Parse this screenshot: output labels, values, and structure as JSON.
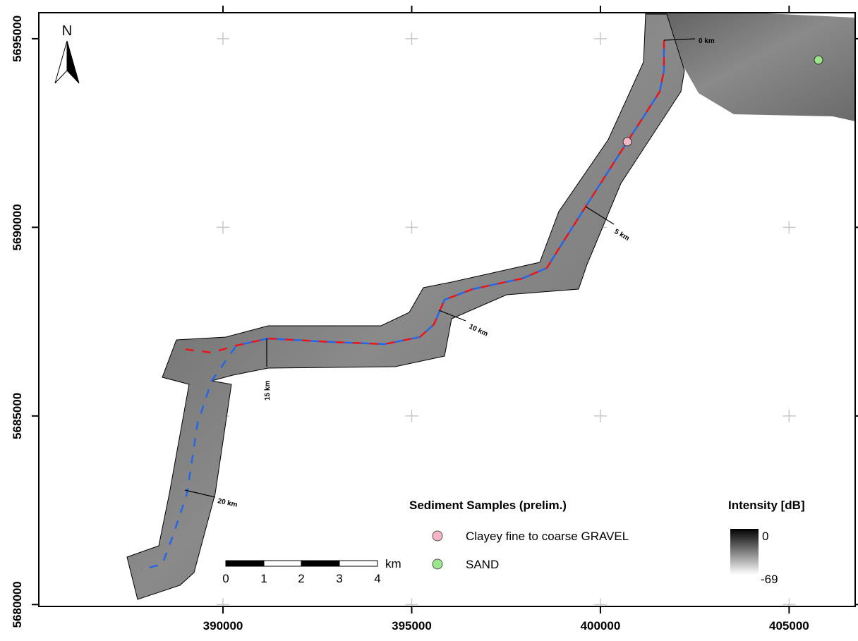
{
  "map": {
    "north": "N",
    "xlim": [
      385120,
      406750
    ],
    "ylim": [
      5679950,
      5695690
    ],
    "xticks": [
      390000,
      395000,
      400000,
      405000
    ],
    "yticks": [
      5680000,
      5685000,
      5690000,
      5695000
    ],
    "km_labels": [
      "0 km",
      "5 km",
      "10 km",
      "15 km",
      "20 km"
    ],
    "scalebar": {
      "labels": [
        "0",
        "1",
        "2",
        "3",
        "4"
      ],
      "unit": "km"
    },
    "samples_legend": {
      "title": "Sediment Samples (prelim.)",
      "items": [
        "Clayey fine to coarse GRAVEL",
        "SAND"
      ]
    },
    "intensity_legend": {
      "title": "Intensity [dB]",
      "max": "0",
      "min": "-69"
    }
  }
}
